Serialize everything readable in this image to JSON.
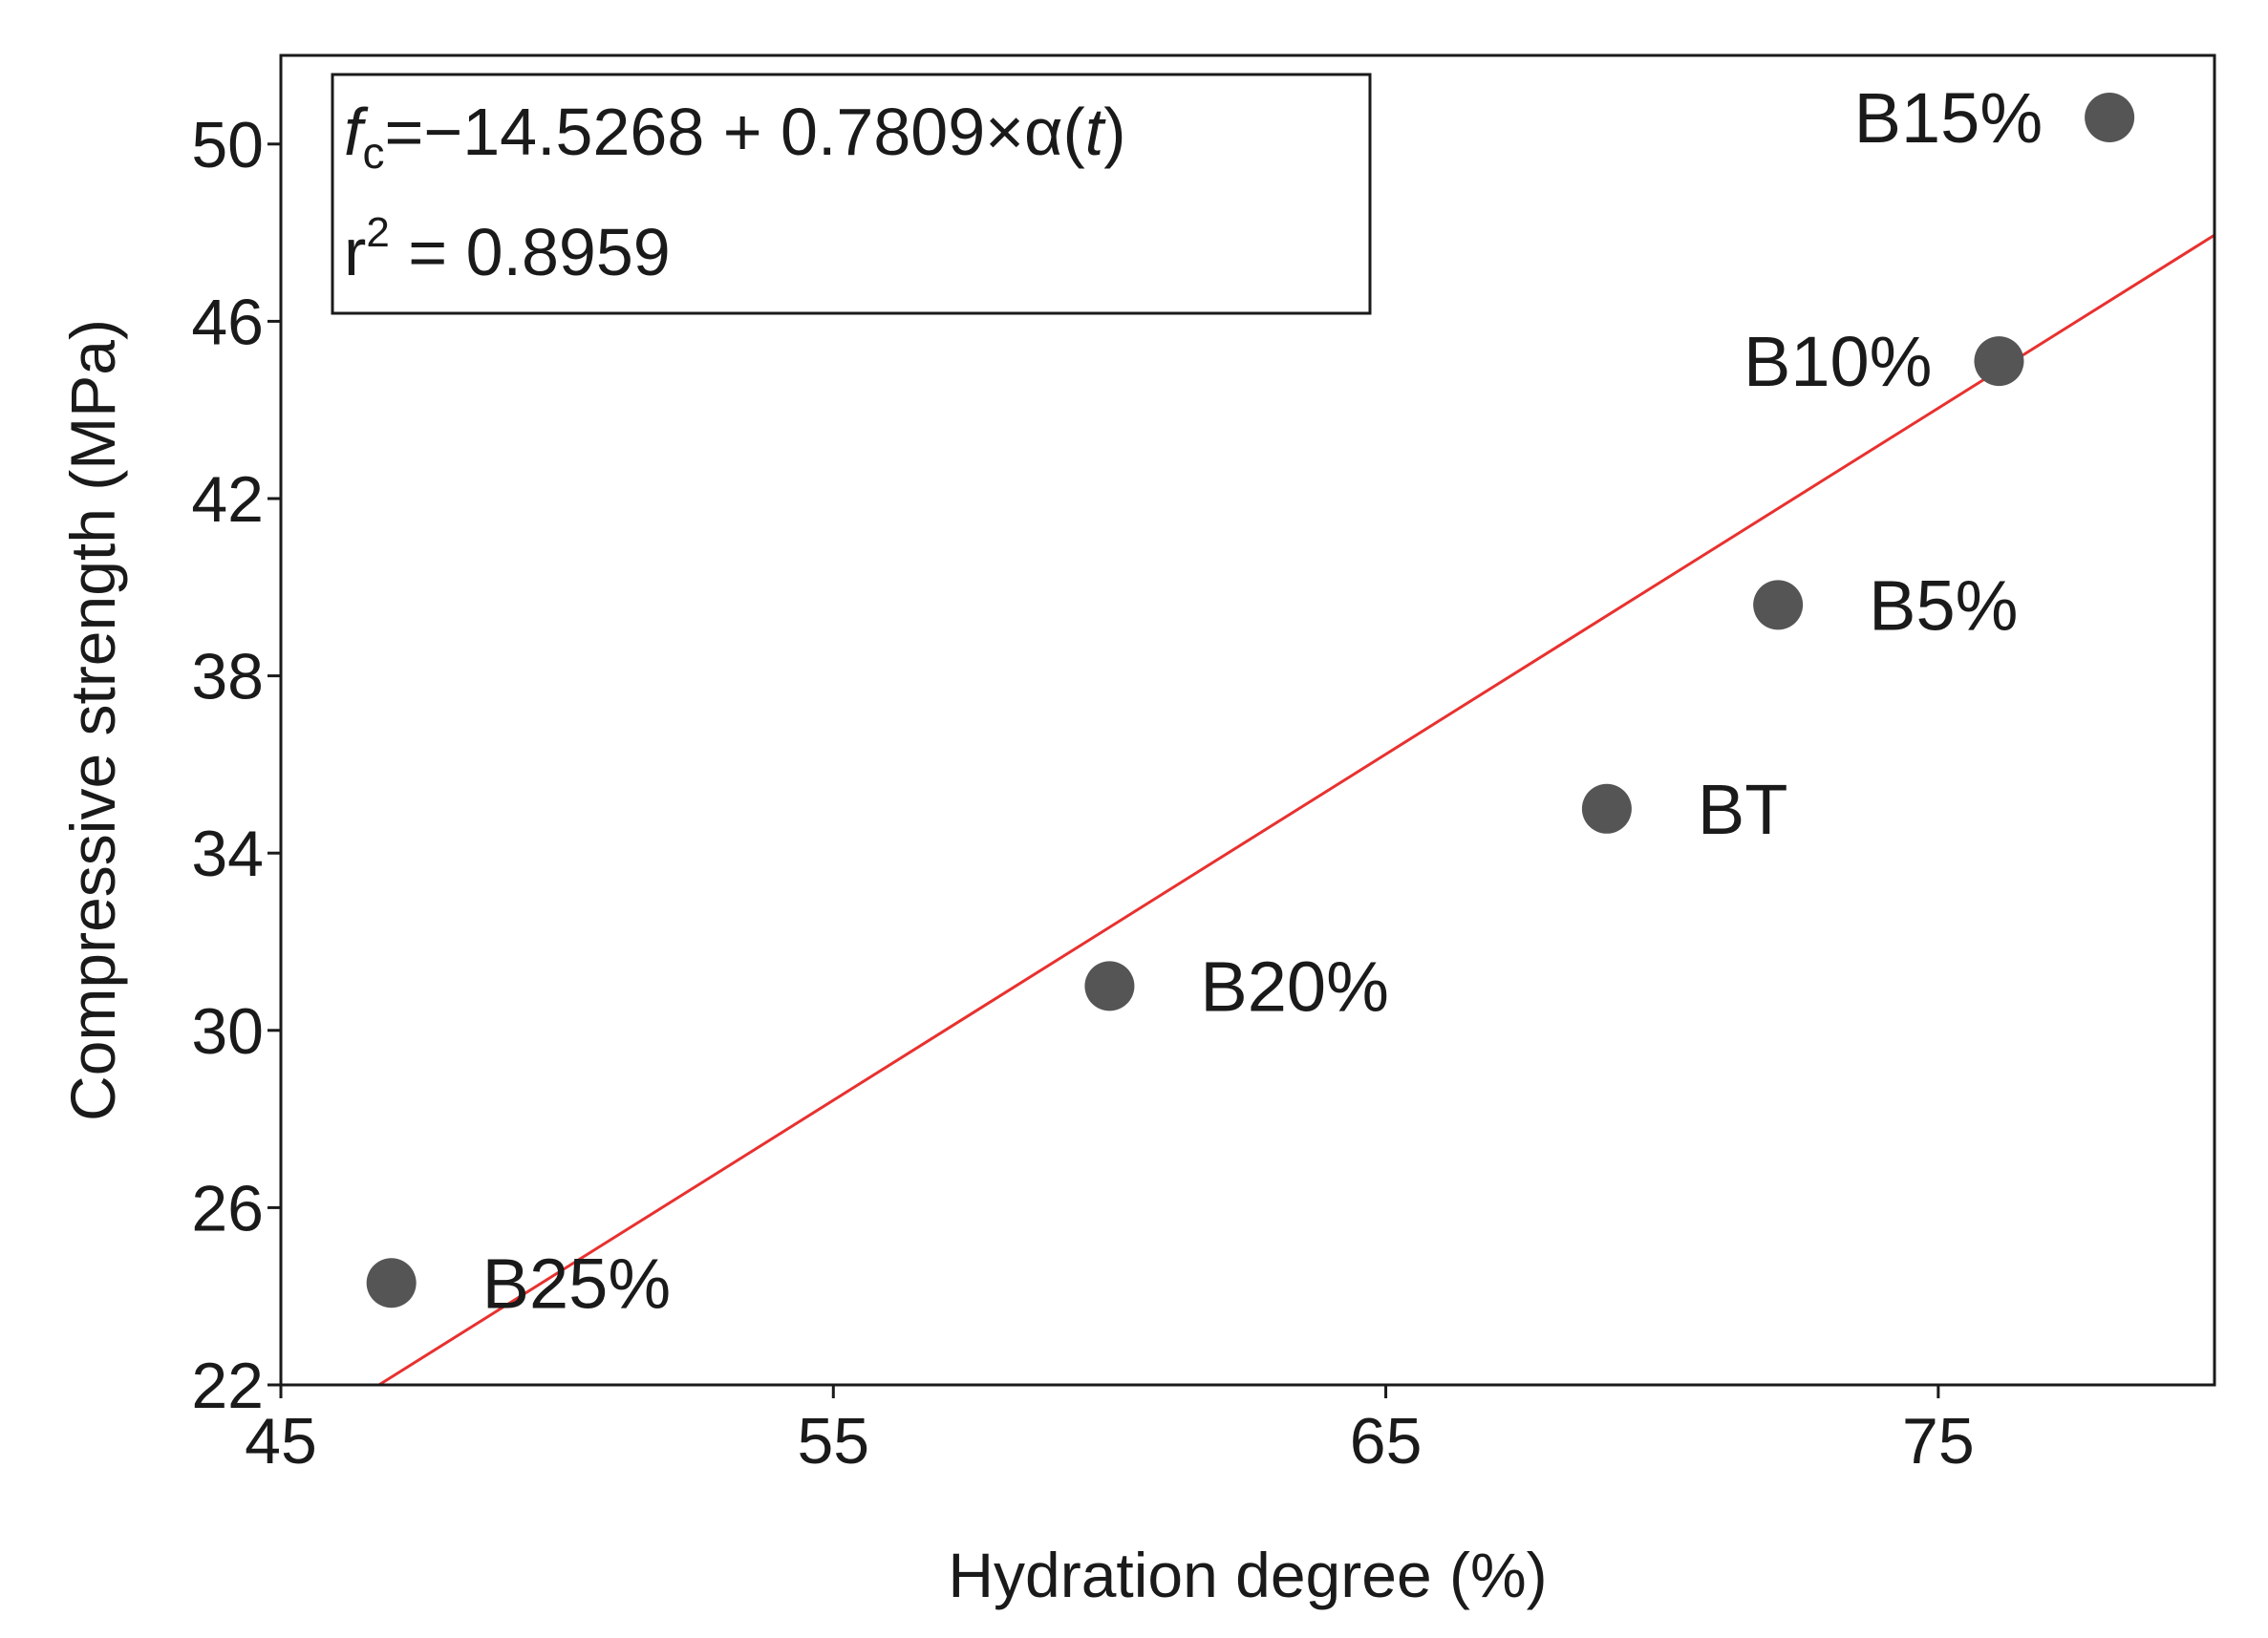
{
  "chart_data": {
    "type": "scatter",
    "title": "",
    "xlabel": "Hydration degree (%)",
    "ylabel": "Compressive strength (MPa)",
    "xlim": [
      45,
      80
    ],
    "ylim": [
      22,
      52
    ],
    "xticks": [
      "45",
      "55",
      "65",
      "75"
    ],
    "yticks": [
      "22",
      "26",
      "30",
      "34",
      "38",
      "42",
      "46",
      "50"
    ],
    "grid": false,
    "points": [
      {
        "label": "B25%",
        "x": 47.0,
        "y": 24.3
      },
      {
        "label": "B20%",
        "x": 60.0,
        "y": 31.0
      },
      {
        "label": "BT",
        "x": 69.0,
        "y": 35.0
      },
      {
        "label": "B5%",
        "x": 72.1,
        "y": 39.6
      },
      {
        "label": "B10%",
        "x": 76.1,
        "y": 45.1
      },
      {
        "label": "B15%",
        "x": 78.1,
        "y": 50.6
      }
    ],
    "fit": {
      "intercept": -14.5268,
      "slope": 0.7809,
      "line_color": "#e8312f",
      "marker_color": "#555555"
    },
    "annotation": {
      "symbol": "f",
      "subscript": "c",
      "equation_body": "=−14.5268 + 0.7809×α(",
      "variable": "t",
      "close": ")",
      "r_symbol": "r",
      "r_exponent": "2",
      "r_value": " = 0.8959"
    }
  }
}
